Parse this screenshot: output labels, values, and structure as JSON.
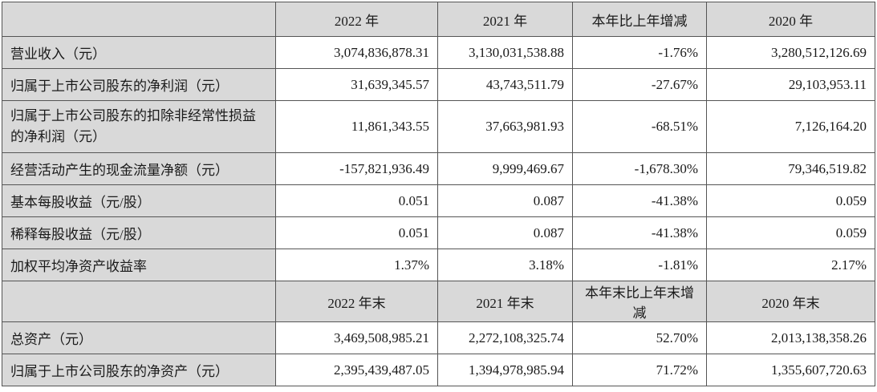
{
  "header1": [
    "",
    "2022 年",
    "2021 年",
    "本年比上年增减",
    "2020 年"
  ],
  "rows1": [
    {
      "label": "营业收入（元）",
      "values": [
        "3,074,836,878.31",
        "3,130,031,538.88",
        "-1.76%",
        "3,280,512,126.69"
      ]
    },
    {
      "label": "归属于上市公司股东的净利润（元）",
      "values": [
        "31,639,345.57",
        "43,743,511.79",
        "-27.67%",
        "29,103,953.11"
      ]
    },
    {
      "label": "归属于上市公司股东的扣除非经常性损益的净利润（元）",
      "values": [
        "11,861,343.55",
        "37,663,981.93",
        "-68.51%",
        "7,126,164.20"
      ]
    },
    {
      "label": "经营活动产生的现金流量净额（元）",
      "values": [
        "-157,821,936.49",
        "9,999,469.67",
        "-1,678.30%",
        "79,346,519.82"
      ]
    },
    {
      "label": "基本每股收益（元/股）",
      "values": [
        "0.051",
        "0.087",
        "-41.38%",
        "0.059"
      ]
    },
    {
      "label": "稀释每股收益（元/股）",
      "values": [
        "0.051",
        "0.087",
        "-41.38%",
        "0.059"
      ]
    },
    {
      "label": "加权平均净资产收益率",
      "values": [
        "1.37%",
        "3.18%",
        "-1.81%",
        "2.17%"
      ]
    }
  ],
  "header2": [
    "",
    "2022 年末",
    "2021 年末",
    "本年末比上年末增减",
    "2020 年末"
  ],
  "rows2": [
    {
      "label": "总资产（元）",
      "values": [
        "3,469,508,985.21",
        "2,272,108,325.74",
        "52.70%",
        "2,013,138,358.26"
      ]
    },
    {
      "label": "归属于上市公司股东的净资产（元）",
      "values": [
        "2,395,439,487.05",
        "1,394,978,985.94",
        "71.72%",
        "1,355,607,720.63"
      ]
    }
  ]
}
